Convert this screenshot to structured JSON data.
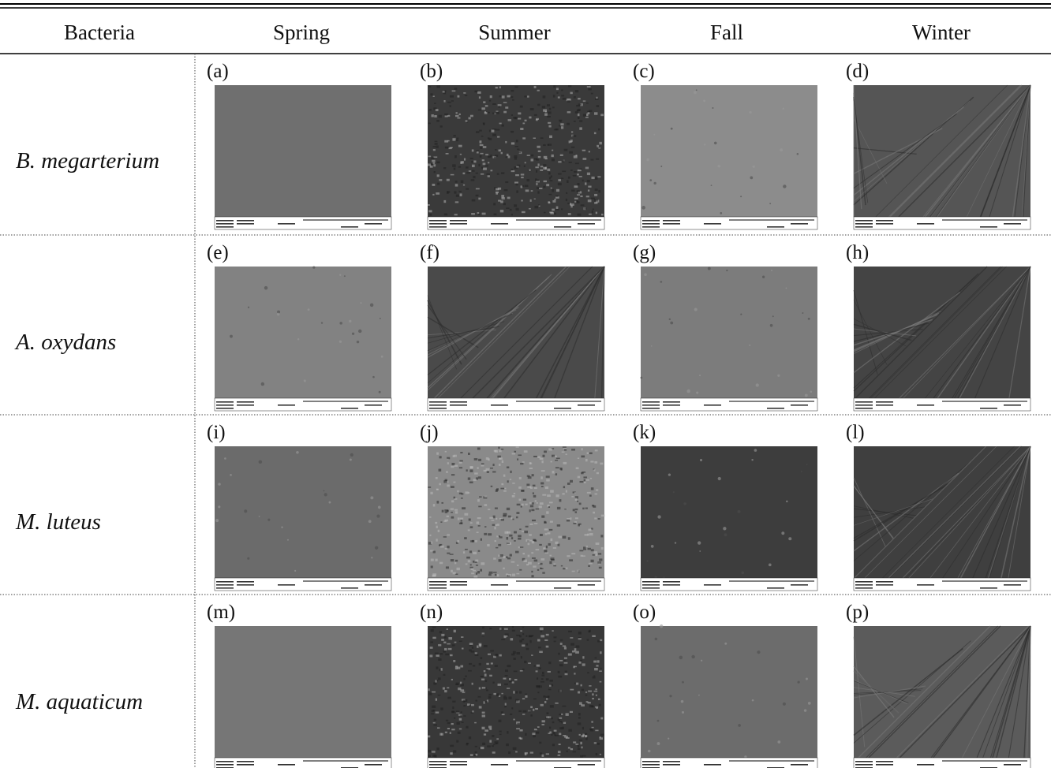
{
  "header": [
    "Bacteria",
    "Spring",
    "Summer",
    "Fall",
    "Winter"
  ],
  "rows": [
    {
      "bacteria": "B. megarterium",
      "panels": [
        "(a)",
        "(b)",
        "(c)",
        "(d)"
      ]
    },
    {
      "bacteria": "A. oxydans",
      "panels": [
        "(e)",
        "(f)",
        "(g)",
        "(h)"
      ]
    },
    {
      "bacteria": "M. luteus",
      "panels": [
        "(i)",
        "(j)",
        "(k)",
        "(l)"
      ]
    },
    {
      "bacteria": "M. aquaticum",
      "panels": [
        "(m)",
        "(n)",
        "(o)",
        "(p)"
      ]
    }
  ]
}
